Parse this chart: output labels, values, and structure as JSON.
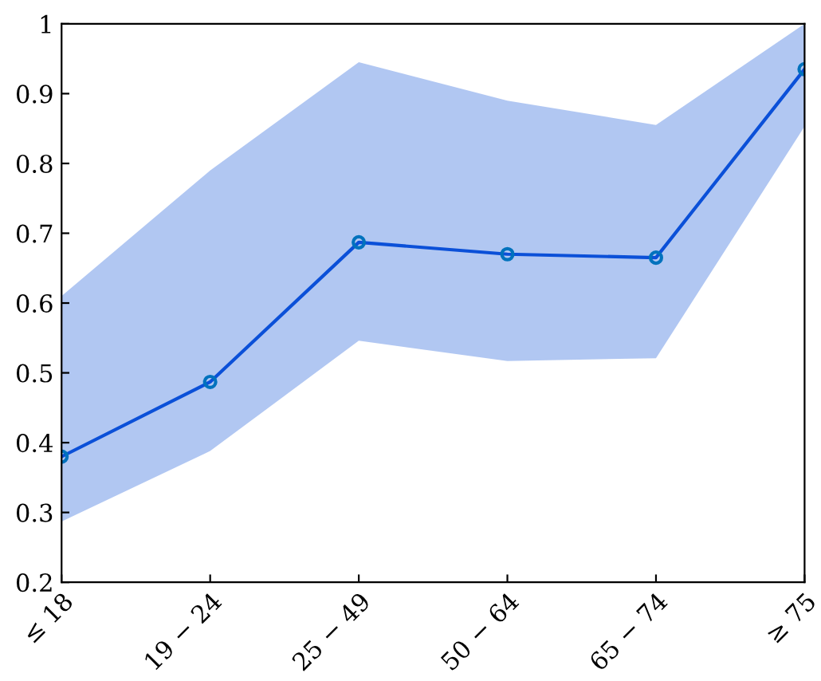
{
  "chart_data": {
    "type": "line",
    "categories": [
      "≤ 18",
      "19 − 24",
      "25 − 49",
      "50 − 64",
      "65 − 74",
      "≥ 75"
    ],
    "series": [
      {
        "color": "#0b50d8",
        "values": [
          0.38,
          0.487,
          0.687,
          0.67,
          0.665,
          0.935
        ],
        "lower": [
          0.287,
          0.388,
          0.546,
          0.517,
          0.521,
          0.853
        ],
        "upper": [
          0.61,
          0.79,
          0.945,
          0.89,
          0.855,
          1.0
        ]
      }
    ],
    "ylim": [
      0.2,
      1
    ],
    "yticks": [
      0.2,
      0.3,
      0.4,
      0.5,
      0.6,
      0.7,
      0.8,
      0.9,
      1
    ],
    "grid": false,
    "legend": false,
    "marker": "circle",
    "line_style": "solid"
  }
}
